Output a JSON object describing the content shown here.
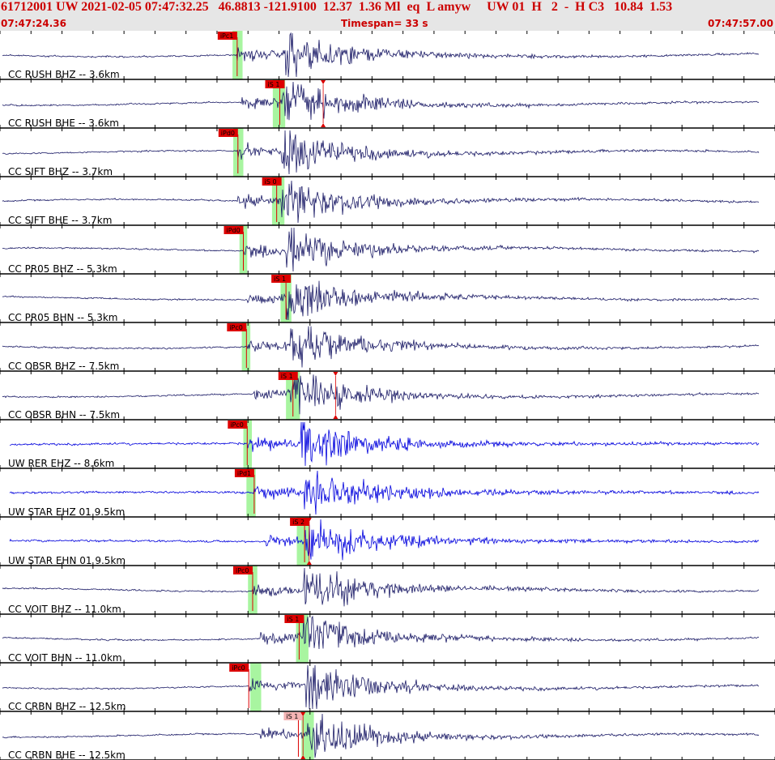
{
  "header": {
    "event_line": "61712001 UW 2021-02-05 07:47:32.25   46.8813 -121.9100  12.37  1.36 Ml  eq  L amyw     UW 01  H   2  -  H C3   10.84  1.53",
    "time_start": "07:47:24.36",
    "timespan": "Timespan=  33 s",
    "time_end": "07:47:57.00"
  },
  "colors": {
    "header_bg": "#e6e6e6",
    "header_text": "#cc0000",
    "trace_cc": "#1a1a66",
    "trace_uw": "#0000dd",
    "pick_window": "#a8f5a0",
    "pick_flag": "#dd0000",
    "pick_flag_light": "#f4b4b4",
    "pick_line": "#dd0000",
    "divider": "#000000"
  },
  "channels": [
    {
      "label": "CC RUSH BHZ -- 3.6km",
      "net": "CC",
      "pick": {
        "label": "iPc1",
        "type": "P",
        "t": 0.306,
        "window": [
          0.3,
          0.313
        ]
      },
      "sync": 0.358,
      "s_center": 0.364
    },
    {
      "label": "CC RUSH BHE -- 3.6km",
      "net": "CC",
      "pick": {
        "label": "iS 1",
        "type": "S",
        "t": 0.361,
        "window": [
          0.352,
          0.368
        ]
      },
      "coda_mark": 0.417,
      "sync": 0.358,
      "s_center": 0.364
    },
    {
      "label": "CC SIFT BHZ -- 3.7km",
      "net": "CC",
      "pick": {
        "label": "iPd0",
        "type": "P",
        "t": 0.307,
        "window": [
          0.301,
          0.314
        ]
      },
      "sync": 0.356,
      "s_center": 0.363
    },
    {
      "label": "CC SIFT BHE -- 3.7km",
      "net": "CC",
      "pick": {
        "label": "iS 0",
        "type": "S",
        "t": 0.357,
        "window": [
          0.351,
          0.367
        ]
      },
      "sync": 0.356,
      "s_center": 0.363
    },
    {
      "label": "CC PR05 BHZ -- 5.3km",
      "net": "CC",
      "pick": {
        "label": "iPd0",
        "type": "P",
        "t": 0.314,
        "window": [
          0.309,
          0.319
        ]
      },
      "sync": 0.367,
      "s_center": 0.368
    },
    {
      "label": "CC PR05 BHN -- 5.3km",
      "net": "CC",
      "pick": {
        "label": "iS 1",
        "type": "S",
        "t": 0.369,
        "window": [
          0.362,
          0.376
        ]
      },
      "sync": 0.367,
      "s_center": 0.368
    },
    {
      "label": "CC OBSR BHZ -- 7.5km",
      "net": "CC",
      "pick": {
        "label": "iPc0",
        "type": "P",
        "t": 0.318,
        "window": [
          0.312,
          0.323
        ]
      },
      "sync": 0.384,
      "s_center": 0.375
    },
    {
      "label": "CC OBSR BHN -- 7.5km",
      "net": "CC",
      "pick": {
        "label": "iS 1",
        "type": "S",
        "t": 0.378,
        "window": [
          0.369,
          0.387
        ]
      },
      "coda_mark": 0.433,
      "sync": 0.384,
      "s_center": 0.375
    },
    {
      "label": "UW RER EHZ -- 8.6km",
      "net": "UW",
      "pick": {
        "label": "iPc0",
        "type": "P",
        "t": 0.319,
        "window": [
          0.314,
          0.325
        ]
      },
      "sync": 0.387,
      "s_center": 0.388
    },
    {
      "label": "UW STAR EHZ 01 9.5km",
      "net": "UW",
      "pick": {
        "label": "iPd1",
        "type": "P",
        "t": 0.328,
        "window": [
          0.318,
          0.33
        ]
      },
      "sync": 0.393,
      "s_center": 0.392
    },
    {
      "label": "UW STAR EHN 01 9.5km",
      "net": "UW",
      "pick": {
        "label": "iS 2",
        "type": "S",
        "t": 0.393,
        "window": [
          0.383,
          0.399
        ]
      },
      "coda_mark": 0.399,
      "sync": 0.393,
      "s_center": 0.392
    },
    {
      "label": "CC VOIT BHZ -- 11.0km",
      "net": "CC",
      "pick": {
        "label": "iPc0",
        "type": "P",
        "t": 0.326,
        "window": [
          0.32,
          0.332
        ]
      },
      "sync": 0.394,
      "s_center": 0.391
    },
    {
      "label": "CC VOIT BHN -- 11.0km",
      "net": "CC",
      "pick": {
        "label": "iS 1",
        "type": "S",
        "t": 0.386,
        "window": [
          0.382,
          0.398
        ]
      },
      "sync": 0.394,
      "s_center": 0.391
    },
    {
      "label": "CC CRBN BHZ -- 12.5km",
      "net": "CC",
      "pick": {
        "label": "iPc0",
        "type": "P",
        "t": 0.321,
        "window": [
          0.323,
          0.337
        ]
      },
      "sync": 0.385,
      "s_center": 0.394
    },
    {
      "label": "CC CRBN BHE -- 12.5km",
      "net": "CC",
      "pick": {
        "label": "iS 1",
        "type": "S",
        "t": 0.385,
        "window": [
          0.389,
          0.405
        ],
        "light": true
      },
      "coda_mark": 0.391,
      "sync": 0.385,
      "s_center": 0.394
    }
  ]
}
